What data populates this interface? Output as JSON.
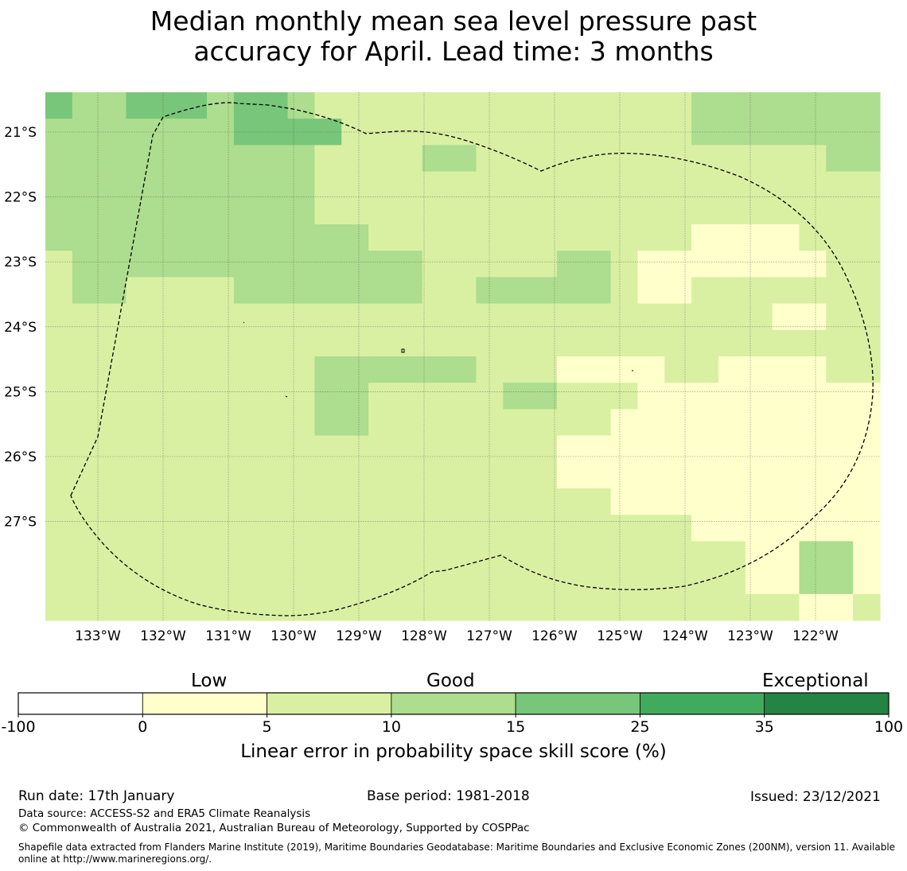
{
  "title_line1": "Median monthly mean sea level pressure past",
  "title_line2": "accuracy for April. Lead time: 3 months",
  "map": {
    "lon_ticks": [
      "133°W",
      "132°W",
      "131°W",
      "130°W",
      "129°W",
      "128°W",
      "127°W",
      "126°W",
      "125°W",
      "124°W",
      "123°W",
      "122°W"
    ],
    "lat_ticks": [
      "21°S",
      "22°S",
      "23°S",
      "24°S",
      "25°S",
      "26°S",
      "27°S"
    ],
    "grid_bin_legend": "skill category per grid cell: 0=white(<0),1=0-5,2=5-10,3=10-15,4=15-25",
    "grid": [
      [
        4,
        3,
        3,
        4,
        4,
        4,
        3,
        4,
        4,
        3,
        2,
        2,
        2,
        2,
        2,
        2,
        2,
        2,
        2,
        2,
        2,
        2,
        2,
        2,
        3,
        3,
        3,
        3,
        3,
        3,
        3
      ],
      [
        3,
        3,
        3,
        3,
        3,
        3,
        3,
        4,
        4,
        4,
        4,
        2,
        2,
        2,
        2,
        2,
        2,
        2,
        2,
        2,
        2,
        2,
        2,
        2,
        3,
        3,
        3,
        3,
        3,
        3,
        3
      ],
      [
        3,
        3,
        3,
        3,
        3,
        3,
        3,
        3,
        3,
        3,
        2,
        2,
        2,
        2,
        3,
        3,
        2,
        2,
        2,
        2,
        2,
        2,
        2,
        2,
        2,
        2,
        2,
        2,
        2,
        3,
        3
      ],
      [
        3,
        3,
        3,
        3,
        3,
        3,
        3,
        3,
        3,
        3,
        2,
        2,
        2,
        2,
        2,
        2,
        2,
        2,
        2,
        2,
        2,
        2,
        2,
        2,
        2,
        2,
        2,
        2,
        2,
        2,
        2
      ],
      [
        3,
        3,
        3,
        3,
        3,
        3,
        3,
        3,
        3,
        3,
        2,
        2,
        2,
        2,
        2,
        2,
        2,
        2,
        2,
        2,
        2,
        2,
        2,
        2,
        2,
        2,
        2,
        2,
        2,
        2,
        2
      ],
      [
        3,
        3,
        3,
        3,
        3,
        3,
        3,
        3,
        3,
        3,
        3,
        3,
        2,
        2,
        2,
        2,
        2,
        2,
        2,
        2,
        2,
        2,
        2,
        2,
        1,
        1,
        1,
        1,
        2,
        2,
        2
      ],
      [
        2,
        3,
        3,
        3,
        3,
        3,
        3,
        3,
        3,
        3,
        3,
        3,
        3,
        3,
        2,
        2,
        2,
        2,
        2,
        3,
        3,
        2,
        1,
        1,
        1,
        1,
        1,
        1,
        1,
        2,
        2
      ],
      [
        2,
        3,
        3,
        2,
        2,
        2,
        2,
        3,
        3,
        3,
        3,
        3,
        3,
        3,
        2,
        2,
        3,
        3,
        3,
        3,
        3,
        2,
        1,
        1,
        2,
        2,
        2,
        2,
        2,
        2,
        2
      ],
      [
        2,
        2,
        2,
        2,
        2,
        2,
        2,
        2,
        2,
        2,
        2,
        2,
        2,
        2,
        2,
        2,
        2,
        2,
        2,
        2,
        2,
        2,
        2,
        2,
        2,
        2,
        2,
        1,
        1,
        2,
        2
      ],
      [
        2,
        2,
        2,
        2,
        2,
        2,
        2,
        2,
        2,
        2,
        2,
        2,
        2,
        2,
        2,
        2,
        2,
        2,
        2,
        2,
        2,
        2,
        2,
        2,
        2,
        2,
        2,
        2,
        2,
        2,
        2
      ],
      [
        2,
        2,
        2,
        2,
        2,
        2,
        2,
        2,
        2,
        2,
        3,
        3,
        3,
        3,
        3,
        3,
        2,
        2,
        2,
        1,
        1,
        1,
        1,
        2,
        2,
        1,
        1,
        1,
        1,
        2,
        2
      ],
      [
        2,
        2,
        2,
        2,
        2,
        2,
        2,
        2,
        2,
        2,
        3,
        3,
        2,
        2,
        2,
        2,
        2,
        3,
        3,
        2,
        2,
        2,
        1,
        1,
        1,
        1,
        1,
        1,
        1,
        1,
        1
      ],
      [
        2,
        2,
        2,
        2,
        2,
        2,
        2,
        2,
        2,
        2,
        3,
        3,
        2,
        2,
        2,
        2,
        2,
        2,
        2,
        2,
        2,
        1,
        1,
        1,
        1,
        1,
        1,
        1,
        1,
        1,
        1
      ],
      [
        2,
        2,
        2,
        2,
        2,
        2,
        2,
        2,
        2,
        2,
        2,
        2,
        2,
        2,
        2,
        2,
        2,
        2,
        2,
        1,
        1,
        1,
        1,
        1,
        1,
        1,
        1,
        1,
        1,
        1,
        1
      ],
      [
        2,
        2,
        2,
        2,
        2,
        2,
        2,
        2,
        2,
        2,
        2,
        2,
        2,
        2,
        2,
        2,
        2,
        2,
        2,
        1,
        1,
        1,
        1,
        1,
        1,
        1,
        1,
        1,
        1,
        1,
        1
      ],
      [
        2,
        2,
        2,
        2,
        2,
        2,
        2,
        2,
        2,
        2,
        2,
        2,
        2,
        2,
        2,
        2,
        2,
        2,
        2,
        2,
        2,
        1,
        1,
        1,
        1,
        1,
        1,
        1,
        1,
        1,
        1
      ],
      [
        2,
        2,
        2,
        2,
        2,
        2,
        2,
        2,
        2,
        2,
        2,
        2,
        2,
        2,
        2,
        2,
        2,
        2,
        2,
        2,
        2,
        2,
        2,
        2,
        1,
        1,
        1,
        1,
        1,
        1,
        1
      ],
      [
        2,
        2,
        2,
        2,
        2,
        2,
        2,
        2,
        2,
        2,
        2,
        2,
        2,
        2,
        2,
        2,
        2,
        2,
        2,
        2,
        2,
        2,
        2,
        2,
        2,
        2,
        1,
        1,
        3,
        3,
        1
      ],
      [
        2,
        2,
        2,
        2,
        2,
        2,
        2,
        2,
        2,
        2,
        2,
        2,
        2,
        2,
        2,
        2,
        2,
        2,
        2,
        2,
        2,
        2,
        2,
        2,
        2,
        2,
        1,
        1,
        3,
        3,
        1
      ],
      [
        2,
        2,
        2,
        2,
        2,
        2,
        2,
        2,
        2,
        2,
        2,
        2,
        2,
        2,
        2,
        2,
        2,
        2,
        2,
        2,
        2,
        2,
        2,
        2,
        2,
        2,
        2,
        2,
        1,
        1,
        2
      ]
    ]
  },
  "colorbar": {
    "category_low": "Low",
    "category_good": "Good",
    "category_exceptional": "Exceptional",
    "ticks": [
      "-100",
      "0",
      "5",
      "10",
      "15",
      "25",
      "35",
      "100"
    ],
    "colors": [
      "#ffffff",
      "#ffffcc",
      "#d9f0a3",
      "#addd8e",
      "#78c679",
      "#41ab5d",
      "#238443"
    ],
    "label": "Linear error in probability space skill score (%)"
  },
  "footer": {
    "run_date": "Run date: 17th January",
    "base_period": "Base period: 1981-2018",
    "issued": "Issued: 23/12/2021",
    "data_source": "Data source: ACCESS-S2 and ERA5 Climate Reanalysis",
    "copyright": "© Commonwealth of Australia 2021, Australian Bureau of Meteorology, Supported by COSPPac",
    "shapefile_line1": "Shapefile data extracted from Flanders Marine Institute (2019), Maritime Boundaries Geodatabase: Maritime Boundaries and Exclusive Economic Zones (200NM), version 11. Available",
    "shapefile_line2": "online at http://www.marineregions.org/."
  }
}
